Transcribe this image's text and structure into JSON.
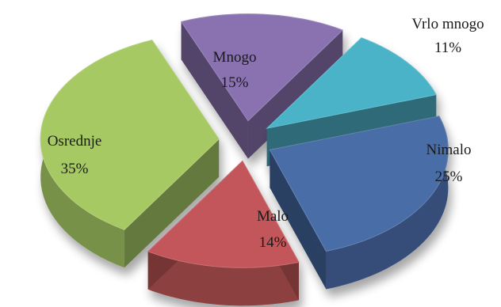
{
  "chart_data": {
    "type": "pie",
    "style": "3d-exploded",
    "slices": [
      {
        "label": "Vrlo mnogo",
        "value": 11,
        "value_text": "11%",
        "color": "#4bb3c8"
      },
      {
        "label": "Nimalo",
        "value": 25,
        "value_text": "25%",
        "color": "#4a6da6"
      },
      {
        "label": "Malo",
        "value": 14,
        "value_text": "14%",
        "color": "#c2575a"
      },
      {
        "label": "Osrednje",
        "value": 35,
        "value_text": "35%",
        "color": "#a6c964"
      },
      {
        "label": "Mnogo",
        "value": 15,
        "value_text": "15%",
        "color": "#8a72b0"
      }
    ]
  }
}
